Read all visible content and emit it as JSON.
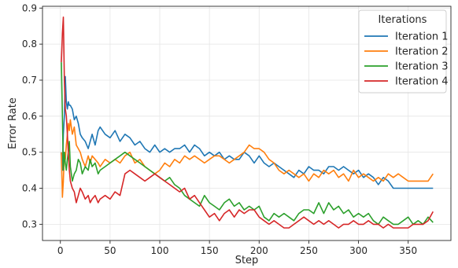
{
  "chart_data": {
    "type": "line",
    "title": "",
    "xlabel": "Step",
    "ylabel": "Error Rate",
    "xlim": [
      -18,
      393
    ],
    "ylim": [
      0.255,
      0.905
    ],
    "xticks": [
      0,
      50,
      100,
      150,
      200,
      250,
      300,
      350
    ],
    "yticks": [
      0.3,
      0.4,
      0.5,
      0.6,
      0.7,
      0.8,
      0.9
    ],
    "xtick_labels": [
      "0",
      "50",
      "100",
      "150",
      "200",
      "250",
      "300",
      "350"
    ],
    "ytick_labels": [
      "0.3",
      "0.4",
      "0.5",
      "0.6",
      "0.7",
      "0.8",
      "0.9"
    ],
    "grid": true,
    "legend": {
      "title": "Iterations",
      "placement": "top-right"
    },
    "x": [
      1,
      2,
      3,
      4,
      5,
      6,
      7,
      8,
      9,
      10,
      12,
      14,
      16,
      18,
      20,
      22,
      25,
      28,
      30,
      32,
      35,
      38,
      40,
      45,
      50,
      55,
      60,
      65,
      70,
      75,
      80,
      85,
      90,
      95,
      100,
      105,
      110,
      115,
      120,
      125,
      130,
      135,
      140,
      145,
      150,
      155,
      160,
      165,
      170,
      175,
      180,
      185,
      190,
      195,
      200,
      205,
      210,
      215,
      220,
      225,
      230,
      235,
      240,
      245,
      250,
      255,
      260,
      265,
      270,
      275,
      280,
      285,
      290,
      295,
      300,
      305,
      310,
      315,
      320,
      325,
      330,
      335,
      340,
      345,
      350,
      355,
      360,
      365,
      370,
      375
    ],
    "series": [
      {
        "name": "Iteration 1",
        "color": "#1f77b4",
        "values": [
          0.5,
          0.45,
          0.55,
          0.6,
          0.71,
          0.64,
          0.62,
          0.64,
          0.63,
          0.63,
          0.62,
          0.59,
          0.6,
          0.58,
          0.55,
          0.54,
          0.53,
          0.51,
          0.53,
          0.55,
          0.52,
          0.56,
          0.57,
          0.55,
          0.54,
          0.56,
          0.53,
          0.55,
          0.54,
          0.52,
          0.53,
          0.51,
          0.5,
          0.52,
          0.5,
          0.51,
          0.5,
          0.51,
          0.51,
          0.52,
          0.5,
          0.52,
          0.51,
          0.49,
          0.5,
          0.49,
          0.5,
          0.48,
          0.49,
          0.48,
          0.48,
          0.5,
          0.49,
          0.47,
          0.49,
          0.47,
          0.46,
          0.47,
          0.46,
          0.45,
          0.44,
          0.43,
          0.45,
          0.44,
          0.46,
          0.45,
          0.45,
          0.44,
          0.46,
          0.46,
          0.45,
          0.46,
          0.45,
          0.44,
          0.45,
          0.43,
          0.44,
          0.43,
          0.41,
          0.43,
          0.42,
          0.4,
          0.4,
          0.4,
          0.4,
          0.4,
          0.4,
          0.4,
          0.4,
          0.4
        ]
      },
      {
        "name": "Iteration 2",
        "color": "#ff7f0e",
        "values": [
          0.5,
          0.375,
          0.42,
          0.5,
          0.48,
          0.52,
          0.55,
          0.58,
          0.56,
          0.59,
          0.55,
          0.57,
          0.52,
          0.51,
          0.5,
          0.48,
          0.46,
          0.49,
          0.47,
          0.49,
          0.48,
          0.47,
          0.46,
          0.48,
          0.47,
          0.48,
          0.47,
          0.49,
          0.5,
          0.47,
          0.48,
          0.46,
          0.45,
          0.44,
          0.45,
          0.47,
          0.46,
          0.48,
          0.47,
          0.49,
          0.48,
          0.49,
          0.48,
          0.47,
          0.48,
          0.49,
          0.49,
          0.48,
          0.47,
          0.48,
          0.49,
          0.5,
          0.52,
          0.51,
          0.51,
          0.5,
          0.48,
          0.47,
          0.45,
          0.44,
          0.45,
          0.44,
          0.43,
          0.44,
          0.42,
          0.44,
          0.43,
          0.45,
          0.44,
          0.45,
          0.43,
          0.44,
          0.42,
          0.45,
          0.43,
          0.44,
          0.43,
          0.42,
          0.43,
          0.42,
          0.44,
          0.43,
          0.44,
          0.43,
          0.42,
          0.42,
          0.42,
          0.42,
          0.42,
          0.44
        ]
      },
      {
        "name": "Iteration 3",
        "color": "#2ca02c",
        "values": [
          0.75,
          0.6,
          0.45,
          0.5,
          0.47,
          0.45,
          0.48,
          0.5,
          0.53,
          0.46,
          0.42,
          0.44,
          0.45,
          0.48,
          0.47,
          0.44,
          0.46,
          0.45,
          0.48,
          0.46,
          0.47,
          0.44,
          0.45,
          0.46,
          0.47,
          0.48,
          0.49,
          0.5,
          0.49,
          0.48,
          0.47,
          0.46,
          0.45,
          0.44,
          0.43,
          0.42,
          0.43,
          0.41,
          0.4,
          0.38,
          0.37,
          0.36,
          0.35,
          0.38,
          0.36,
          0.35,
          0.34,
          0.36,
          0.37,
          0.35,
          0.36,
          0.34,
          0.35,
          0.34,
          0.35,
          0.32,
          0.31,
          0.33,
          0.32,
          0.33,
          0.32,
          0.31,
          0.33,
          0.34,
          0.34,
          0.33,
          0.36,
          0.33,
          0.36,
          0.34,
          0.35,
          0.33,
          0.34,
          0.32,
          0.33,
          0.32,
          0.33,
          0.31,
          0.3,
          0.32,
          0.31,
          0.3,
          0.3,
          0.31,
          0.32,
          0.3,
          0.31,
          0.3,
          0.32,
          0.305
        ]
      },
      {
        "name": "Iteration 4",
        "color": "#d62728",
        "values": [
          0.75,
          0.83,
          0.875,
          0.7,
          0.62,
          0.6,
          0.55,
          0.5,
          0.45,
          0.42,
          0.4,
          0.39,
          0.36,
          0.38,
          0.4,
          0.39,
          0.37,
          0.38,
          0.36,
          0.37,
          0.38,
          0.36,
          0.37,
          0.38,
          0.37,
          0.39,
          0.38,
          0.44,
          0.45,
          0.44,
          0.43,
          0.42,
          0.43,
          0.44,
          0.43,
          0.42,
          0.41,
          0.4,
          0.39,
          0.4,
          0.37,
          0.38,
          0.36,
          0.34,
          0.32,
          0.33,
          0.31,
          0.33,
          0.34,
          0.32,
          0.34,
          0.33,
          0.34,
          0.34,
          0.32,
          0.31,
          0.3,
          0.31,
          0.3,
          0.29,
          0.29,
          0.3,
          0.31,
          0.32,
          0.31,
          0.3,
          0.31,
          0.3,
          0.31,
          0.3,
          0.29,
          0.3,
          0.3,
          0.31,
          0.3,
          0.3,
          0.31,
          0.3,
          0.3,
          0.29,
          0.3,
          0.29,
          0.29,
          0.29,
          0.29,
          0.3,
          0.3,
          0.3,
          0.31,
          0.335
        ]
      }
    ]
  }
}
